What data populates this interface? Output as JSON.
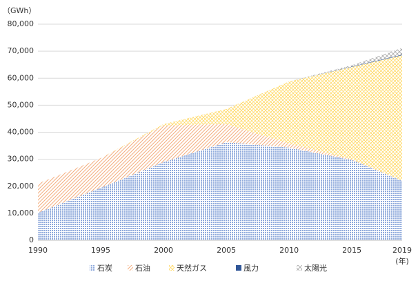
{
  "chart_data": {
    "type": "stacked-area",
    "y_unit": "（GWh）",
    "x_unit": "(年)",
    "x": [
      1990,
      1995,
      2000,
      2005,
      2010,
      2015,
      2019
    ],
    "series": [
      {
        "name": "石炭",
        "color": "#8faadc",
        "values": [
          10200,
          19400,
          28900,
          36300,
          34300,
          29700,
          22000
        ]
      },
      {
        "name": "石油",
        "color": "#f4b183",
        "values": [
          10800,
          11000,
          13600,
          6700,
          1500,
          300,
          100
        ]
      },
      {
        "name": "天然ガス",
        "color": "#ffd966",
        "values": [
          0,
          0,
          500,
          5600,
          23000,
          34200,
          46400
        ]
      },
      {
        "name": "風力",
        "color": "#2f5597",
        "values": [
          0,
          0,
          0,
          0,
          0,
          100,
          200
        ]
      },
      {
        "name": "太陽光",
        "color": "#a5a5a5",
        "values": [
          0,
          0,
          0,
          0,
          0,
          500,
          2500
        ]
      }
    ],
    "xlim": [
      1990,
      2019
    ],
    "xticks": [
      1990,
      1995,
      2000,
      2005,
      2010,
      2015,
      2019
    ],
    "ylim": [
      0,
      80000
    ],
    "yticks": [
      0,
      {
        "value": 10000,
        "label": "10,000"
      },
      {
        "value": 20000,
        "label": "20,000"
      },
      {
        "value": 30000,
        "label": "30,000"
      },
      {
        "value": 40000,
        "label": "40,000"
      },
      {
        "value": 50000,
        "label": "50,000"
      },
      {
        "value": 60000,
        "label": "60,000"
      },
      {
        "value": 70000,
        "label": "70,000"
      },
      {
        "value": 80000,
        "label": "80,000"
      }
    ],
    "grid": true
  }
}
